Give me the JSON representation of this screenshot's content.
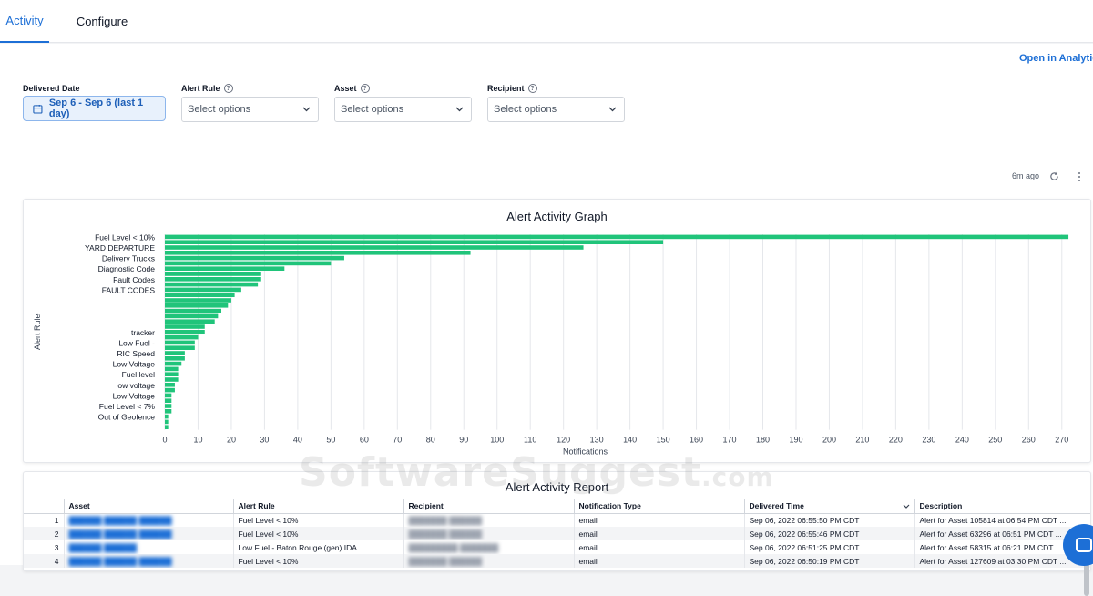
{
  "tabs": [
    {
      "label": "Activity",
      "active": true
    },
    {
      "label": "Configure",
      "active": false
    }
  ],
  "open_analytics_label": "Open in Analytics",
  "filters": {
    "delivered_date": {
      "label": "Delivered Date",
      "value": "Sep 6 - Sep 6 (last 1 day)"
    },
    "alert_rule": {
      "label": "Alert Rule",
      "placeholder": "Select options"
    },
    "asset": {
      "label": "Asset",
      "placeholder": "Select options"
    },
    "recipient": {
      "label": "Recipient",
      "placeholder": "Select options"
    }
  },
  "refresh_status": "6m ago",
  "graph": {
    "title": "Alert Activity Graph"
  },
  "chart_data": {
    "type": "bar",
    "orientation": "horizontal",
    "title": "Alert Activity Graph",
    "xlabel": "Notifications",
    "ylabel": "Alert Rule",
    "xlim": [
      0,
      275
    ],
    "xticks": [
      0,
      10,
      20,
      30,
      40,
      50,
      60,
      70,
      80,
      90,
      100,
      110,
      120,
      130,
      140,
      150,
      160,
      170,
      180,
      190,
      200,
      210,
      220,
      230,
      240,
      250,
      260,
      270
    ],
    "grid": "vertical",
    "color": "#20c47a",
    "category_labels": [
      {
        "index": 0,
        "label": "Fuel Level < 10%"
      },
      {
        "index": 2,
        "label": "YARD DEPARTURE"
      },
      {
        "index": 4,
        "label": "Delivery Trucks"
      },
      {
        "index": 6,
        "label": "Diagnostic Code"
      },
      {
        "index": 8,
        "label": "Fault Codes"
      },
      {
        "index": 10,
        "label": "FAULT CODES"
      },
      {
        "index": 18,
        "label": "tracker"
      },
      {
        "index": 20,
        "label": "Low Fuel -"
      },
      {
        "index": 22,
        "label": "RIC Speed"
      },
      {
        "index": 24,
        "label": "Low Voltage"
      },
      {
        "index": 26,
        "label": "Fuel level"
      },
      {
        "index": 28,
        "label": "low voltage"
      },
      {
        "index": 30,
        "label": "Low Voltage"
      },
      {
        "index": 32,
        "label": "Fuel Level < 7%"
      },
      {
        "index": 34,
        "label": "Out of Geofence"
      }
    ],
    "values": [
      272,
      150,
      126,
      92,
      54,
      50,
      36,
      29,
      29,
      28,
      23,
      21,
      20,
      19,
      17,
      16,
      15,
      12,
      12,
      10,
      9,
      9,
      6,
      6,
      5,
      4,
      4,
      4,
      3,
      3,
      2,
      2,
      2,
      2,
      1,
      1,
      1
    ]
  },
  "report": {
    "title": "Alert Activity Report",
    "columns": [
      "",
      "Asset",
      "Alert Rule",
      "Recipient",
      "Notification Type",
      "Delivered Time",
      "Description"
    ],
    "rows": [
      {
        "num": "1",
        "alert_rule": "Fuel Level < 10%",
        "type": "email",
        "time": "Sep 06, 2022 06:55:50 PM CDT",
        "description": "Alert for Asset 105814 at 06:54 PM CDT ..."
      },
      {
        "num": "2",
        "alert_rule": "Fuel Level < 10%",
        "type": "email",
        "time": "Sep 06, 2022 06:55:46 PM CDT",
        "description": "Alert for Asset 63296 at 06:51 PM CDT ..."
      },
      {
        "num": "3",
        "alert_rule": "Low Fuel - Baton Rouge (gen) IDA",
        "type": "email",
        "time": "Sep 06, 2022 06:51:25 PM CDT",
        "description": "Alert for Asset 58315 at 06:21 PM CDT ..."
      },
      {
        "num": "4",
        "alert_rule": "Fuel Level < 10%",
        "type": "email",
        "time": "Sep 06, 2022 06:50:19 PM CDT",
        "description": "Alert for Asset 127609 at 03:30 PM CDT ..."
      }
    ]
  },
  "watermark": {
    "main": "SoftwareSuggest",
    "suffix": ".com"
  }
}
